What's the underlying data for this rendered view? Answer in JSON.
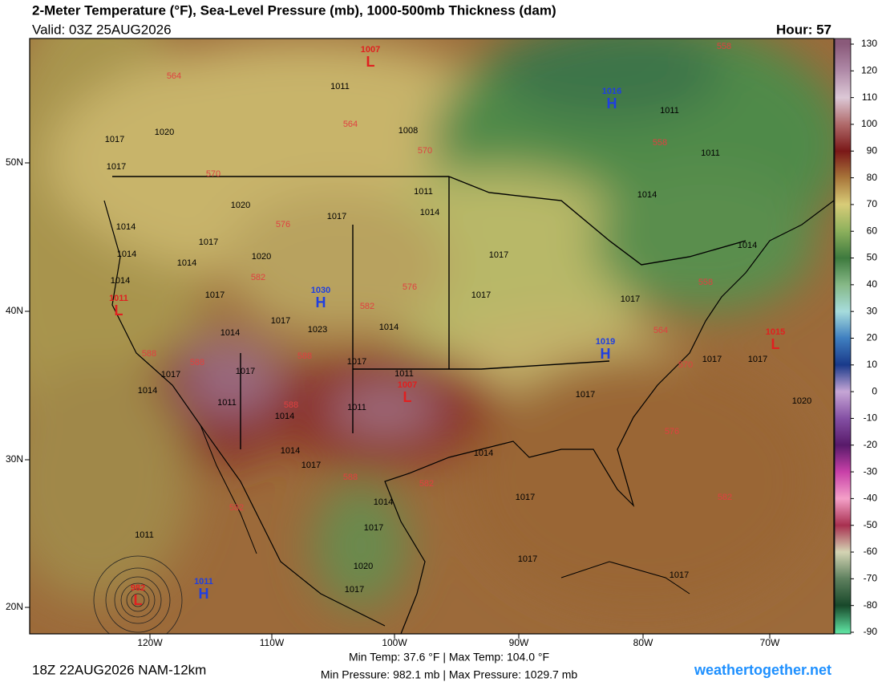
{
  "header": {
    "title": "2-Meter Temperature (°F), Sea-Level Pressure (mb), 1000-500mb Thickness (dam)",
    "valid": "Valid: 03Z 25AUG2026",
    "hour": "Hour: 57"
  },
  "map": {
    "lat_labels": [
      "50N",
      "40N",
      "30N",
      "20N"
    ],
    "lon_labels": [
      "120W",
      "110W",
      "100W",
      "90W",
      "80W",
      "70W"
    ],
    "pressure_centers": [
      {
        "type": "L",
        "value": 1007,
        "color": "#e02020"
      },
      {
        "type": "H",
        "value": 1016,
        "color": "#1f3fe0"
      },
      {
        "type": "L",
        "value": 1011,
        "color": "#e02020"
      },
      {
        "type": "H",
        "value": 1030,
        "color": "#1f3fe0"
      },
      {
        "type": "H",
        "value": 1019,
        "color": "#1f3fe0"
      },
      {
        "type": "L",
        "value": 1015,
        "color": "#e02020"
      },
      {
        "type": "L",
        "value": 1007,
        "color": "#e02020"
      },
      {
        "type": "H",
        "value": 1011,
        "color": "#1f3fe0"
      },
      {
        "type": "L",
        "value": 982,
        "color": "#e02020"
      }
    ],
    "isobar_labels": [
      1017,
      1020,
      1017,
      1020,
      1014,
      1017,
      1014,
      1014,
      1014,
      1020,
      1017,
      1014,
      1017,
      1023,
      1017,
      1017,
      1011,
      1011,
      1014,
      1011,
      1014,
      1017,
      1014,
      1017,
      1020,
      1017,
      1014,
      1017,
      1017,
      1017,
      1017,
      1011,
      1017,
      1014,
      1017,
      1014,
      1011,
      1017,
      1017,
      1014,
      1017,
      1017,
      1017,
      1014,
      1020,
      1011,
      1011,
      1014,
      1008,
      1011
    ],
    "thickness_labels": [
      564,
      564,
      570,
      570,
      576,
      582,
      582,
      576,
      588,
      588,
      588,
      588,
      582,
      582,
      558,
      558,
      564,
      570,
      576,
      582,
      558,
      588
    ]
  },
  "colorbar": {
    "ticks": [
      130,
      120,
      110,
      100,
      90,
      80,
      70,
      60,
      50,
      40,
      30,
      20,
      10,
      0,
      -10,
      -20,
      -30,
      -40,
      -50,
      -60,
      -70,
      -80,
      -90
    ],
    "colors": [
      "#8a5a7a",
      "#b08aa8",
      "#dcc8d6",
      "#b06a6a",
      "#7a1818",
      "#a8763a",
      "#d8cc78",
      "#8cb05c",
      "#3e7a3e",
      "#86b886",
      "#a6dcdc",
      "#3f7fc0",
      "#1a3a8a",
      "#c6a6d6",
      "#8450a4",
      "#581a6a",
      "#c840a8",
      "#f4a0c8",
      "#a83050",
      "#d4d4b4",
      "#5e805e",
      "#18482a",
      "#5ee0a0"
    ]
  },
  "footer": {
    "run": "18Z 22AUG2026 NAM-12km",
    "temp_range": "Min Temp:  37.6 °F | Max Temp: 104.0 °F",
    "pressure_range": "Min Pressure: 982.1 mb | Max Pressure: 1029.7 mb",
    "site": "weathertogether.net"
  }
}
